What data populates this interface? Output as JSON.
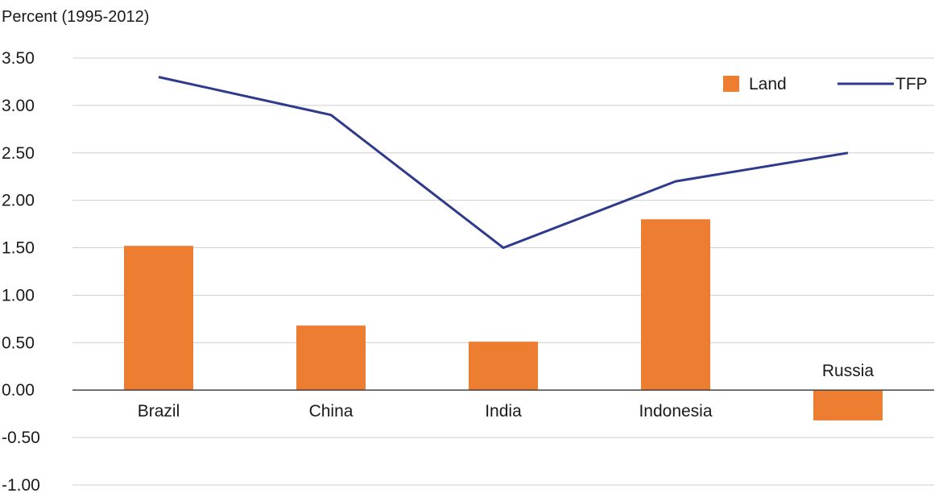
{
  "chart_data": {
    "type": "bar",
    "ylabel": "Percent (1995-2012)",
    "categories": [
      "Brazil",
      "China",
      "India",
      "Indonesia",
      "Russia"
    ],
    "series": [
      {
        "name": "Land",
        "type": "bar",
        "color": "#ED7D31",
        "values": [
          1.52,
          0.68,
          0.51,
          1.8,
          -0.32
        ]
      },
      {
        "name": "TFP",
        "type": "line",
        "color": "#2E3A8C",
        "values": [
          3.3,
          2.9,
          1.5,
          2.2,
          2.5
        ]
      }
    ],
    "ylim": [
      -1.0,
      3.5
    ],
    "yticks": [
      "3.50",
      "3.00",
      "2.50",
      "2.00",
      "1.50",
      "1.00",
      "0.50",
      "0.00",
      "-0.50",
      "-1.00"
    ],
    "grid": true,
    "legend": "top-right"
  }
}
